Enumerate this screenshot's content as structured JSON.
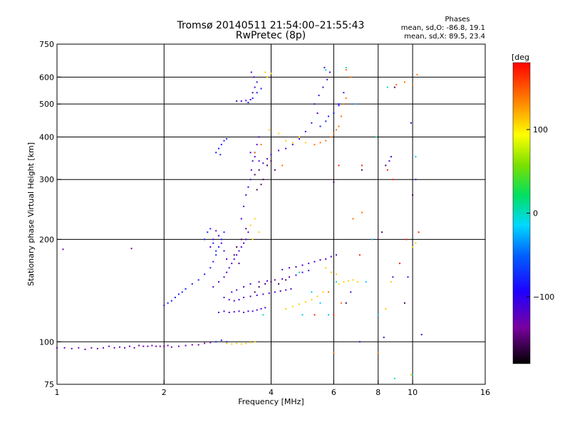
{
  "chart_data": {
    "type": "scatter",
    "title_line1": "Tromsø 20140511 21:54:00–21:55:43",
    "title_line2": "RwPretec (8p)",
    "phases": {
      "heading": "Phases",
      "line1": "mean, sd,O: -86.8, 19.1",
      "line2": "mean, sd,X:  89.5, 23.4"
    },
    "xlabel": "Frequency [MHz]",
    "ylabel": "Stationary phase Virtual Height [km]",
    "x_scale": "log",
    "y_scale": "log",
    "xlim": [
      1,
      16
    ],
    "ylim": [
      75,
      750
    ],
    "x_ticks": [
      1,
      2,
      4,
      6,
      8,
      10,
      16
    ],
    "x_tick_labels": [
      "1",
      "2",
      "4",
      "6",
      "8",
      "10",
      "16"
    ],
    "y_ticks": [
      75,
      100,
      200,
      300,
      400,
      500,
      600,
      750
    ],
    "y_tick_labels": [
      "75",
      "100",
      "200",
      "300",
      "400",
      "500",
      "600",
      "750"
    ],
    "grid_x": [
      2,
      4,
      6,
      8,
      10
    ],
    "grid_y": [
      100,
      200,
      300,
      400,
      500,
      600
    ],
    "colorbar": {
      "label": "[deg",
      "range": [
        -180,
        180
      ],
      "ticks": [
        100,
        0,
        -100
      ],
      "tick_labels": [
        "100",
        "0",
        "−100"
      ]
    },
    "series": [
      {
        "color_value": -130,
        "points": [
          [
            1.0,
            96
          ],
          [
            1.05,
            96
          ],
          [
            1.1,
            95.5
          ],
          [
            1.15,
            96
          ],
          [
            1.2,
            95
          ],
          [
            1.25,
            96
          ],
          [
            1.3,
            95.5
          ],
          [
            1.35,
            96
          ],
          [
            1.4,
            97
          ],
          [
            1.45,
            96
          ],
          [
            1.5,
            96.5
          ],
          [
            1.55,
            96
          ],
          [
            1.6,
            97
          ],
          [
            1.65,
            96
          ],
          [
            1.7,
            97.5
          ],
          [
            1.75,
            97
          ],
          [
            1.8,
            97
          ],
          [
            1.85,
            97.5
          ],
          [
            1.9,
            97
          ],
          [
            1.95,
            97
          ],
          [
            2.0,
            97
          ],
          [
            2.05,
            97.5
          ],
          [
            2.1,
            96.5
          ],
          [
            2.2,
            97
          ],
          [
            2.3,
            97.5
          ],
          [
            2.4,
            98
          ],
          [
            2.5,
            98
          ],
          [
            2.6,
            99
          ],
          [
            2.7,
            99.5
          ],
          [
            1.04,
            187
          ],
          [
            1.62,
            188
          ]
        ]
      },
      {
        "color_value": -115,
        "points": [
          [
            2.85,
            122
          ],
          [
            2.95,
            123
          ],
          [
            3.05,
            122
          ],
          [
            3.15,
            122.5
          ],
          [
            3.25,
            123
          ],
          [
            3.35,
            122
          ],
          [
            3.45,
            123
          ],
          [
            3.55,
            123
          ],
          [
            3.65,
            124
          ],
          [
            3.75,
            125
          ],
          [
            3.85,
            126
          ],
          [
            2.95,
            135
          ],
          [
            3.05,
            133
          ],
          [
            3.15,
            132
          ],
          [
            3.25,
            133
          ],
          [
            3.35,
            135
          ],
          [
            3.5,
            136
          ],
          [
            3.65,
            137
          ],
          [
            3.8,
            138
          ],
          [
            3.95,
            139
          ],
          [
            4.1,
            140
          ],
          [
            4.25,
            141
          ],
          [
            4.4,
            142
          ],
          [
            4.55,
            143
          ],
          [
            3.1,
            140
          ],
          [
            3.2,
            142
          ],
          [
            3.35,
            145
          ],
          [
            3.5,
            148
          ],
          [
            3.7,
            150
          ],
          [
            3.9,
            151
          ],
          [
            4.1,
            152
          ],
          [
            4.3,
            153
          ],
          [
            4.5,
            155
          ],
          [
            4.7,
            157
          ],
          [
            4.9,
            160
          ],
          [
            5.1,
            162
          ],
          [
            4.3,
            163
          ],
          [
            4.5,
            165
          ],
          [
            4.7,
            166
          ],
          [
            4.9,
            168
          ],
          [
            5.1,
            170
          ],
          [
            5.3,
            172
          ],
          [
            5.5,
            174
          ],
          [
            5.7,
            175
          ],
          [
            5.9,
            178
          ],
          [
            6.1,
            180
          ],
          [
            2.75,
            145
          ],
          [
            2.85,
            150
          ],
          [
            2.95,
            155
          ],
          [
            3.0,
            160
          ],
          [
            3.05,
            165
          ],
          [
            3.1,
            170
          ],
          [
            3.15,
            175
          ],
          [
            3.2,
            180
          ],
          [
            3.25,
            185
          ],
          [
            3.3,
            190
          ],
          [
            3.35,
            195
          ],
          [
            3.4,
            200
          ],
          [
            3.45,
            210
          ],
          [
            3.3,
            230
          ],
          [
            3.35,
            250
          ],
          [
            3.4,
            270
          ],
          [
            3.45,
            285
          ],
          [
            3.5,
            300
          ],
          [
            3.52,
            320
          ],
          [
            3.55,
            340
          ],
          [
            3.6,
            360
          ],
          [
            3.65,
            380
          ],
          [
            3.7,
            400
          ],
          [
            3.5,
            360
          ],
          [
            3.6,
            350
          ],
          [
            3.7,
            340
          ],
          [
            3.8,
            335
          ],
          [
            3.9,
            345
          ],
          [
            4.0,
            355
          ],
          [
            4.2,
            365
          ],
          [
            4.4,
            370
          ],
          [
            4.6,
            380
          ],
          [
            4.8,
            395
          ],
          [
            5.0,
            415
          ],
          [
            5.2,
            440
          ],
          [
            5.4,
            470
          ],
          [
            5.3,
            500
          ],
          [
            5.45,
            530
          ],
          [
            5.6,
            560
          ],
          [
            5.75,
            590
          ],
          [
            5.85,
            620
          ],
          [
            5.65,
            640
          ],
          [
            3.2,
            510
          ],
          [
            3.3,
            510
          ],
          [
            3.4,
            512
          ],
          [
            3.5,
            515
          ],
          [
            3.55,
            540
          ],
          [
            3.6,
            560
          ],
          [
            3.65,
            580
          ],
          [
            3.52,
            620
          ],
          [
            3.58,
            600
          ],
          [
            3.0,
            175
          ],
          [
            2.95,
            185
          ],
          [
            2.9,
            195
          ],
          [
            2.85,
            205
          ],
          [
            2.8,
            212
          ],
          [
            2.75,
            200
          ],
          [
            2.7,
            190
          ],
          [
            6.2,
            495
          ],
          [
            8.6,
            340
          ],
          [
            8.7,
            350
          ],
          [
            9.9,
            440
          ],
          [
            10.2,
            300
          ],
          [
            9.7,
            155
          ],
          [
            10.6,
            105
          ],
          [
            6.7,
            140
          ],
          [
            7.1,
            100
          ],
          [
            8.3,
            103
          ],
          [
            8.8,
            155
          ]
        ]
      },
      {
        "color_value": -155,
        "points": [
          [
            3.6,
            310
          ],
          [
            3.7,
            320
          ],
          [
            3.8,
            300
          ],
          [
            3.75,
            290
          ],
          [
            3.9,
            330
          ],
          [
            4.0,
            340
          ],
          [
            4.1,
            320
          ],
          [
            3.65,
            280
          ],
          [
            3.2,
            190
          ],
          [
            3.3,
            200
          ],
          [
            3.4,
            215
          ],
          [
            3.15,
            180
          ],
          [
            3.25,
            170
          ],
          [
            3.6,
            140
          ],
          [
            3.7,
            145
          ],
          [
            3.85,
            148
          ],
          [
            4.0,
            150
          ],
          [
            4.2,
            148
          ],
          [
            4.4,
            152
          ],
          [
            6.0,
            295
          ],
          [
            8.4,
            330
          ],
          [
            8.2,
            210
          ],
          [
            8.9,
            560
          ],
          [
            10.0,
            270
          ],
          [
            9.5,
            130
          ],
          [
            7.2,
            320
          ],
          [
            6.5,
            130
          ]
        ]
      },
      {
        "color_value": -80,
        "points": [
          [
            2.0,
            128
          ],
          [
            2.05,
            130
          ],
          [
            2.1,
            132
          ],
          [
            2.15,
            135
          ],
          [
            2.2,
            138
          ],
          [
            2.25,
            140
          ],
          [
            2.3,
            143
          ],
          [
            2.4,
            148
          ],
          [
            2.5,
            152
          ],
          [
            2.6,
            158
          ],
          [
            2.7,
            165
          ],
          [
            2.75,
            172
          ],
          [
            2.8,
            180
          ],
          [
            2.85,
            190
          ],
          [
            2.9,
            200
          ],
          [
            2.95,
            210
          ],
          [
            2.8,
            360
          ],
          [
            2.85,
            370
          ],
          [
            2.9,
            380
          ],
          [
            2.95,
            390
          ],
          [
            3.0,
            395
          ],
          [
            2.88,
            355
          ],
          [
            2.6,
            200
          ],
          [
            2.65,
            210
          ],
          [
            2.7,
            215
          ],
          [
            2.75,
            195
          ],
          [
            2.8,
            185
          ],
          [
            3.0,
            100
          ],
          [
            2.9,
            101
          ],
          [
            2.8,
            100
          ],
          [
            5.5,
            430
          ],
          [
            5.7,
            445
          ],
          [
            5.8,
            460
          ],
          [
            6.0,
            470
          ],
          [
            6.2,
            500
          ],
          [
            6.4,
            540
          ],
          [
            3.45,
            505
          ],
          [
            3.55,
            520
          ],
          [
            3.65,
            540
          ],
          [
            3.75,
            555
          ]
        ]
      },
      {
        "color_value": 110,
        "points": [
          [
            3.0,
            99
          ],
          [
            3.1,
            98.5
          ],
          [
            3.2,
            99
          ],
          [
            3.3,
            98.5
          ],
          [
            3.4,
            99
          ],
          [
            3.5,
            99.5
          ],
          [
            3.6,
            100
          ],
          [
            4.4,
            125
          ],
          [
            4.6,
            127
          ],
          [
            4.8,
            129
          ],
          [
            5.0,
            131
          ],
          [
            5.2,
            133
          ],
          [
            5.4,
            136
          ],
          [
            5.6,
            140
          ],
          [
            6.4,
            150
          ],
          [
            6.6,
            151
          ],
          [
            6.8,
            152
          ],
          [
            7.0,
            150
          ],
          [
            6.2,
            148
          ],
          [
            4.2,
            410
          ],
          [
            4.4,
            390
          ],
          [
            4.6,
            385
          ],
          [
            4.8,
            400
          ],
          [
            5.0,
            385
          ],
          [
            3.95,
            420
          ],
          [
            3.5,
            220
          ],
          [
            3.6,
            230
          ],
          [
            3.7,
            210
          ],
          [
            3.55,
            200
          ],
          [
            3.85,
            620
          ],
          [
            4.0,
            615
          ],
          [
            3.9,
            600
          ],
          [
            5.7,
            165
          ],
          [
            5.9,
            160
          ],
          [
            6.1,
            158
          ],
          [
            8.7,
            150
          ],
          [
            10.0,
            190
          ],
          [
            10.2,
            195
          ],
          [
            8.4,
            125
          ],
          [
            9.9,
            80
          ]
        ]
      },
      {
        "color_value": 140,
        "points": [
          [
            5.3,
            380
          ],
          [
            5.5,
            385
          ],
          [
            5.7,
            390
          ],
          [
            5.9,
            400
          ],
          [
            6.0,
            410
          ],
          [
            6.1,
            420
          ],
          [
            6.2,
            430
          ],
          [
            6.3,
            460
          ],
          [
            6.4,
            500
          ],
          [
            6.5,
            520
          ],
          [
            3.6,
            360
          ],
          [
            3.75,
            380
          ],
          [
            5.8,
            140
          ],
          [
            6.3,
            130
          ],
          [
            6.8,
            230
          ],
          [
            7.2,
            240
          ],
          [
            8.0,
            93
          ],
          [
            6.0,
            93
          ],
          [
            10.0,
            570
          ],
          [
            10.3,
            610
          ],
          [
            9.5,
            580
          ],
          [
            9.0,
            570
          ],
          [
            6.7,
            600
          ],
          [
            6.5,
            630
          ],
          [
            4.3,
            330
          ]
        ]
      },
      {
        "color_value": 170,
        "points": [
          [
            6.0,
            120
          ],
          [
            7.1,
            180
          ],
          [
            9.2,
            170
          ],
          [
            9.6,
            200
          ],
          [
            10.4,
            210
          ],
          [
            8.8,
            300
          ],
          [
            8.5,
            320
          ],
          [
            6.2,
            330
          ],
          [
            5.3,
            120
          ],
          [
            7.2,
            330
          ]
        ]
      },
      {
        "color_value": 0,
        "points": [
          [
            5.7,
            630
          ],
          [
            6.5,
            640
          ],
          [
            8.9,
            78
          ],
          [
            10.0,
            80
          ],
          [
            7.9,
            400
          ],
          [
            8.5,
            560
          ],
          [
            4.8,
            160
          ],
          [
            3.8,
            120
          ]
        ]
      },
      {
        "color_value": -20,
        "points": [
          [
            5.5,
            130
          ],
          [
            5.8,
            120
          ],
          [
            6.1,
            150
          ],
          [
            5.2,
            140
          ],
          [
            4.9,
            120
          ],
          [
            7.4,
            150
          ],
          [
            8.0,
            120
          ],
          [
            10.2,
            350
          ],
          [
            6.9,
            500
          ],
          [
            7.7,
            200
          ]
        ]
      }
    ]
  }
}
